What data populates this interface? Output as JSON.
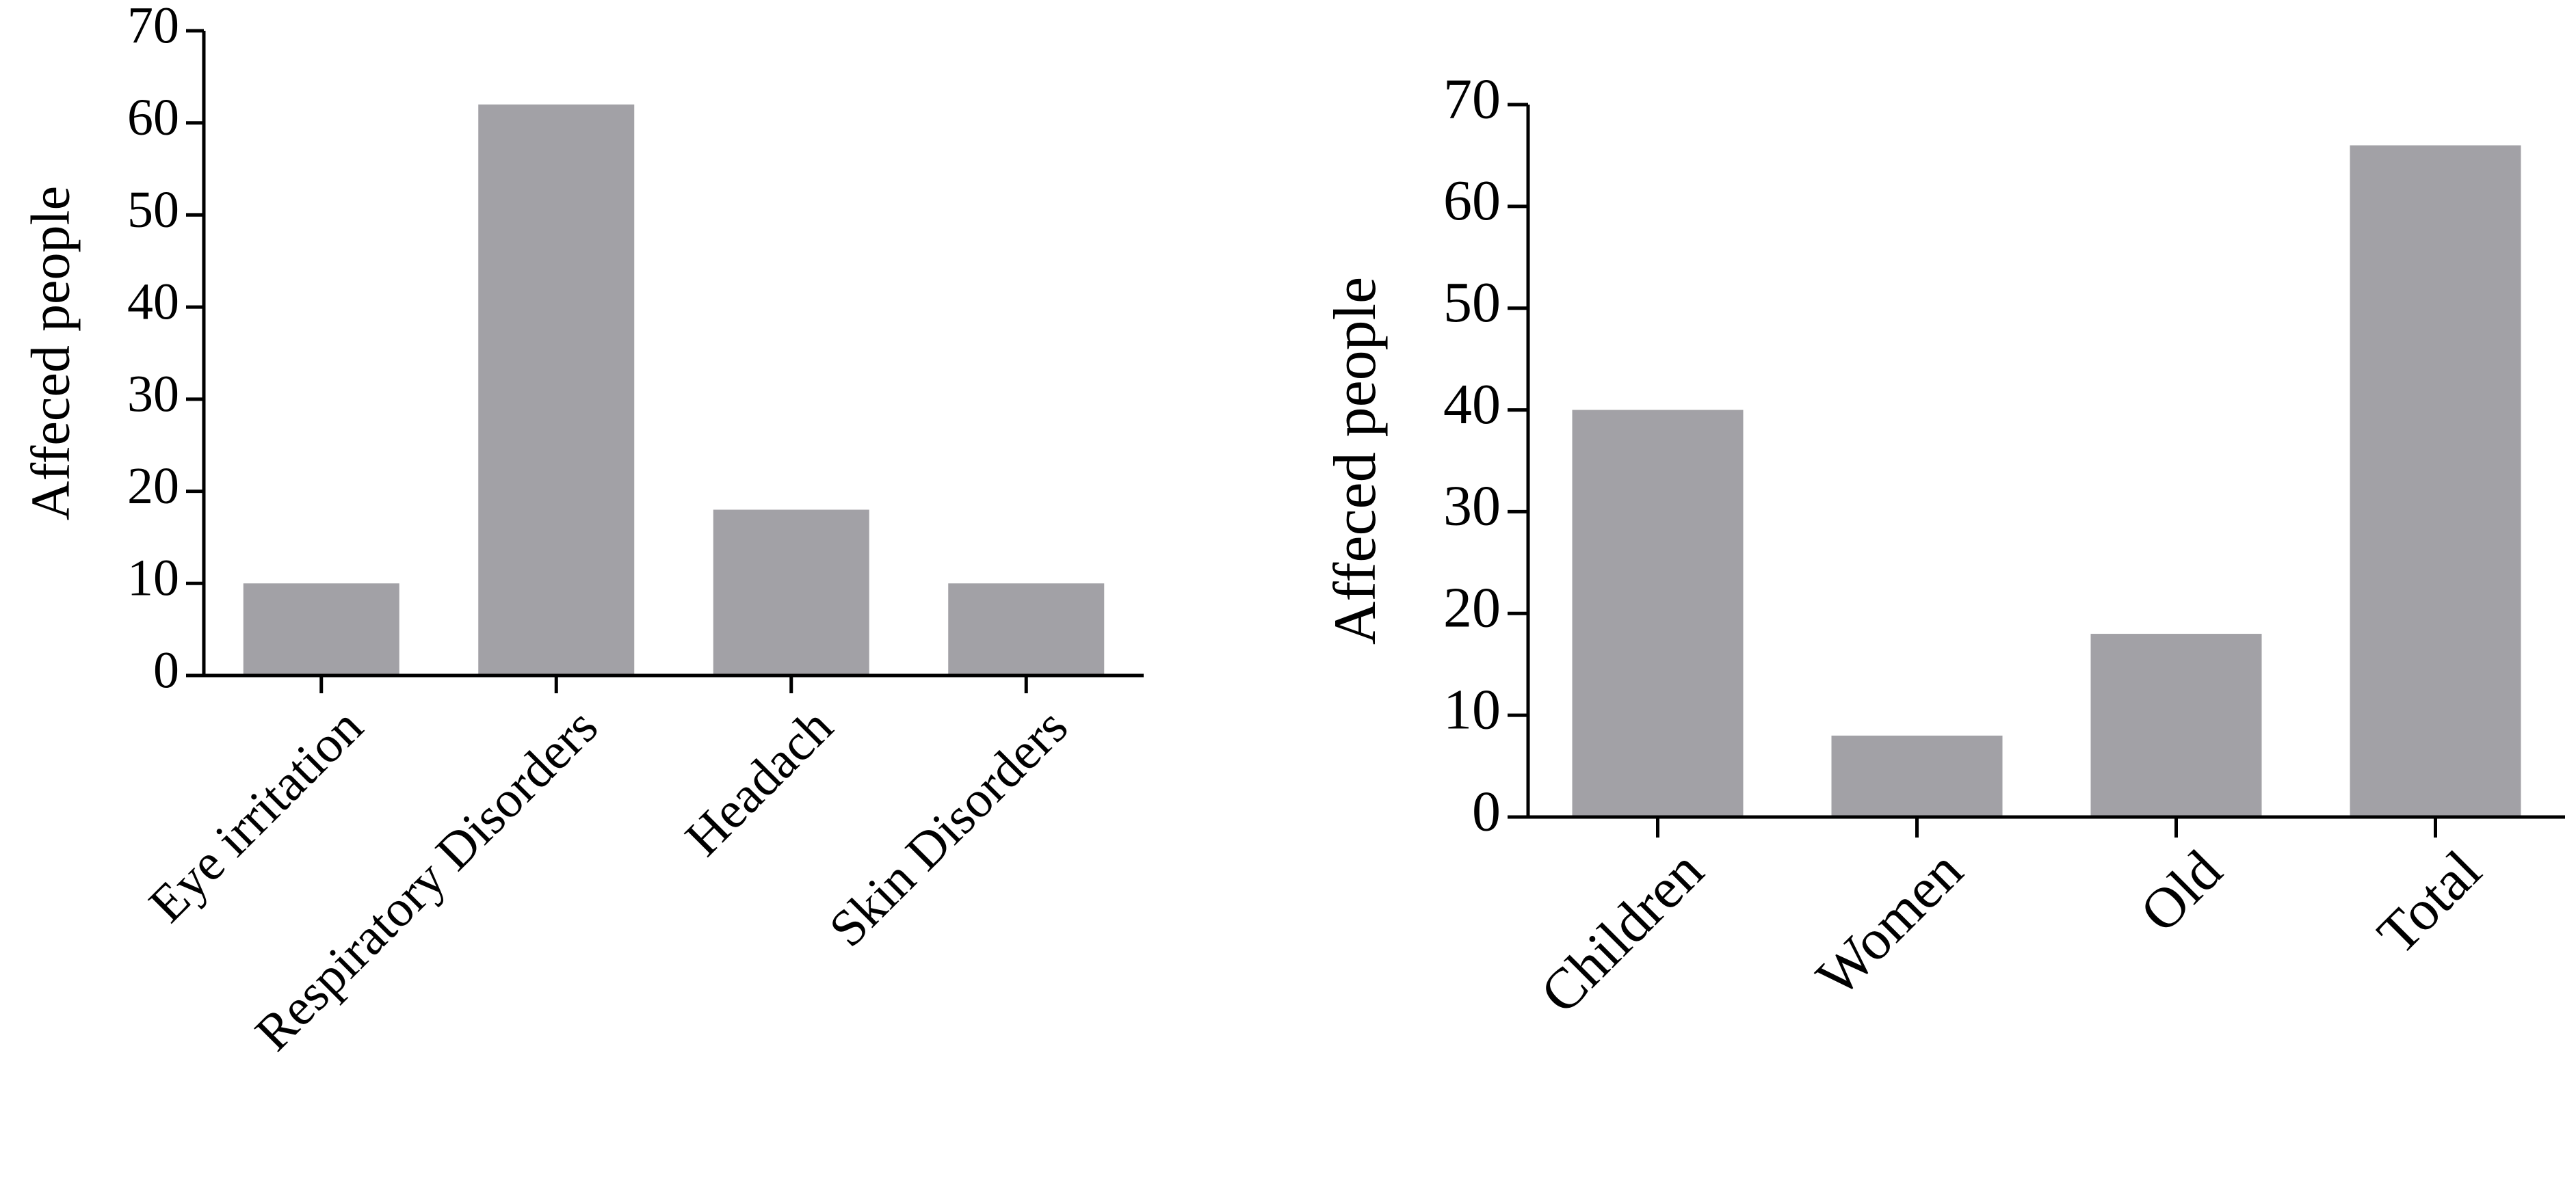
{
  "colors": {
    "bar": "#a2a1a6",
    "axis": "#000000",
    "background": "#ffffff"
  },
  "chart_data": [
    {
      "type": "bar",
      "title": "",
      "xlabel": "",
      "ylabel": "Affeced people",
      "ylim": [
        0,
        70
      ],
      "yticks": [
        0,
        10,
        20,
        30,
        40,
        50,
        60,
        70
      ],
      "categories": [
        "Eye irritation",
        "Respiratory Disorders",
        "Headach",
        "Skin Disorders"
      ],
      "values": [
        10,
        62,
        18,
        10
      ],
      "grid": false,
      "legend": "none"
    },
    {
      "type": "bar",
      "title": "",
      "xlabel": "",
      "ylabel": "Affeced people",
      "ylim": [
        0,
        70
      ],
      "yticks": [
        0,
        10,
        20,
        30,
        40,
        50,
        60,
        70
      ],
      "categories": [
        "Children",
        "Women",
        "Old",
        "Total"
      ],
      "values": [
        40,
        8,
        18,
        66
      ],
      "grid": false,
      "legend": "none"
    }
  ]
}
